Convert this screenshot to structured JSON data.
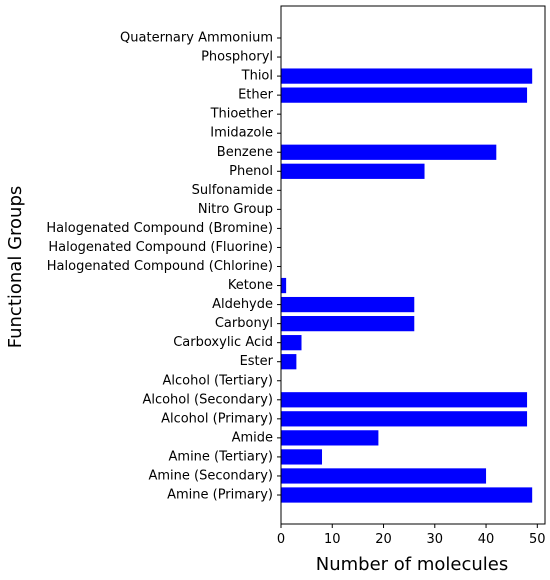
{
  "chart_data": {
    "type": "bar",
    "orientation": "horizontal",
    "xlabel": "Number of molecules",
    "ylabel": "Functional Groups",
    "xlim": [
      0,
      51.5
    ],
    "xticks": [
      0,
      10,
      20,
      30,
      40,
      50
    ],
    "grid": false,
    "bar_color": "#0000ff",
    "categories": [
      "Amine (Primary)",
      "Amine (Secondary)",
      "Amine (Tertiary)",
      "Amide",
      "Alcohol (Primary)",
      "Alcohol (Secondary)",
      "Alcohol (Tertiary)",
      "Ester",
      "Carboxylic Acid",
      "Carbonyl",
      "Aldehyde",
      "Ketone",
      "Halogenated Compound (Chlorine)",
      "Halogenated Compound (Fluorine)",
      "Halogenated Compound (Bromine)",
      "Nitro Group",
      "Sulfonamide",
      "Phenol",
      "Benzene",
      "Imidazole",
      "Thioether",
      "Ether",
      "Thiol",
      "Phosphoryl",
      "Quaternary Ammonium"
    ],
    "values": [
      49,
      40,
      8,
      19,
      48,
      48,
      0,
      3,
      4,
      26,
      26,
      1,
      0,
      0,
      0,
      0,
      0,
      28,
      42,
      0,
      0,
      48,
      49,
      0,
      0
    ]
  }
}
